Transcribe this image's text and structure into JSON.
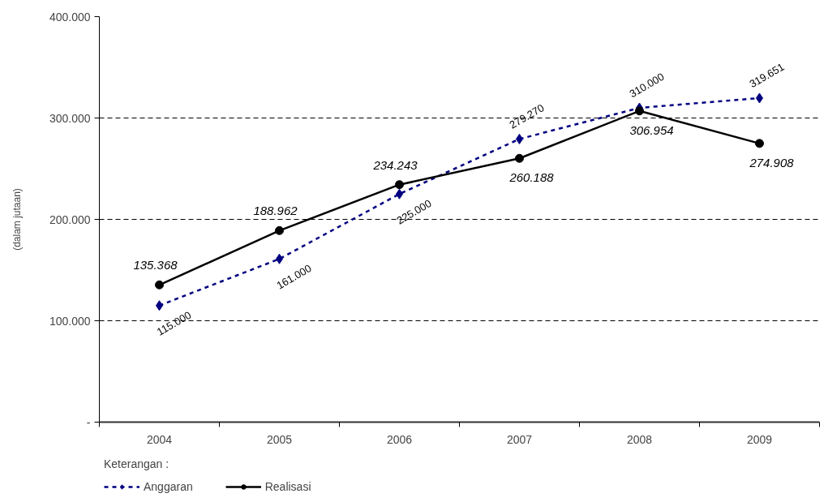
{
  "chart_data": {
    "type": "line",
    "ylabel": "(dalam jutaan)",
    "legend_title": "Keterangan :",
    "categories": [
      "2004",
      "2005",
      "2006",
      "2007",
      "2008",
      "2009"
    ],
    "series": [
      {
        "name": "Anggaran",
        "color": "#000080",
        "marker": "diamond",
        "line_style": "dashed",
        "values": [
          115000,
          161000,
          225000,
          279270,
          310000,
          319651
        ],
        "value_labels": [
          "115.000",
          "161.000",
          "225.000",
          "279.270",
          "310.000",
          "319.651"
        ]
      },
      {
        "name": "Realisasi",
        "color": "#000000",
        "marker": "circle",
        "line_style": "solid",
        "values": [
          135368,
          188962,
          234243,
          260188,
          306954,
          274908
        ],
        "value_labels": [
          "135.368",
          "188.962",
          "234.243",
          "260.188",
          "306.954",
          "274.908"
        ]
      }
    ],
    "ylim": [
      0,
      400000
    ],
    "yticks": [
      {
        "value": 0,
        "label": "-"
      },
      {
        "value": 100000,
        "label": "100.000"
      },
      {
        "value": 200000,
        "label": "200.000"
      },
      {
        "value": 300000,
        "label": "300.000"
      },
      {
        "value": 400000,
        "label": "400.000"
      }
    ],
    "grid": "y",
    "legend": "bottom"
  }
}
